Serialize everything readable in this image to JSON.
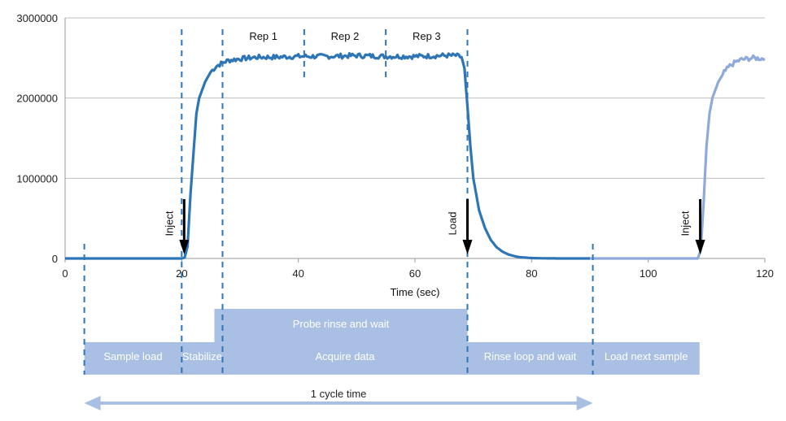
{
  "chart_data": {
    "type": "line",
    "xlabel": "Time (sec)",
    "ylabel": "",
    "xlim": [
      0,
      120
    ],
    "ylim": [
      0,
      3000000
    ],
    "x_ticks": [
      0,
      20,
      40,
      60,
      80,
      100,
      120
    ],
    "y_ticks": [
      0,
      1000000,
      2000000,
      3000000
    ],
    "grid": "horizontal",
    "series": [
      {
        "color": "#2e75b6",
        "x": [
          0,
          3,
          10,
          20,
          20.5,
          21,
          21.5,
          22,
          22.5,
          23,
          24,
          25,
          26,
          27,
          28,
          30,
          33,
          36,
          40,
          45,
          50,
          55,
          60,
          65,
          67,
          68,
          68.5,
          69,
          69.5,
          70,
          71,
          72,
          73,
          74,
          75,
          76,
          77,
          78,
          80,
          82,
          85,
          90
        ],
        "y": [
          0,
          0,
          0,
          0,
          10000,
          150000,
          800000,
          1300000,
          1800000,
          2000000,
          2200000,
          2330000,
          2400000,
          2440000,
          2470000,
          2490000,
          2510000,
          2510000,
          2520000,
          2520000,
          2530000,
          2520000,
          2520000,
          2530000,
          2530000,
          2510000,
          2350000,
          1900000,
          1400000,
          1000000,
          600000,
          380000,
          230000,
          140000,
          85000,
          50000,
          30000,
          15000,
          5000,
          2000,
          0,
          0
        ]
      },
      {
        "color": "#8eaadb",
        "x": [
          90,
          100,
          105,
          108.5,
          109,
          109.5,
          110,
          110.5,
          111,
          112,
          113,
          114,
          115,
          116,
          118,
          120
        ],
        "y": [
          0,
          0,
          0,
          0,
          100000,
          700000,
          1400000,
          1800000,
          2000000,
          2200000,
          2320000,
          2400000,
          2450000,
          2480000,
          2500000,
          2490000
        ]
      }
    ],
    "reps": [
      {
        "label": "Rep 1",
        "start": 27,
        "end": 41
      },
      {
        "label": "Rep 2",
        "start": 41,
        "end": 55
      },
      {
        "label": "Rep 3",
        "start": 55,
        "end": 69
      }
    ],
    "dashed_markers_x": [
      3.3,
      20,
      27,
      69,
      90.5
    ],
    "arrows": [
      {
        "label": "Inject",
        "x": 20
      },
      {
        "label": "Load",
        "x": 69
      },
      {
        "label": "Inject",
        "x": 108.5
      }
    ]
  },
  "phases": {
    "probe_rinse": {
      "label": "Probe rinse and wait",
      "start": 25.6,
      "end": 69
    },
    "bottom": [
      {
        "label": "Sample load",
        "start": 3.3,
        "end": 20
      },
      {
        "label": "Stabilize",
        "start": 20,
        "end": 27
      },
      {
        "label": "Acquire data",
        "start": 27,
        "end": 69
      },
      {
        "label": "Rinse loop and wait",
        "start": 69,
        "end": 90.5
      },
      {
        "label": "Load next sample",
        "start": 90.5,
        "end": 108.8
      }
    ]
  },
  "cycle": {
    "label": "1 cycle time",
    "start": 3.3,
    "end": 90.5
  },
  "colors": {
    "line": "#2e75b6",
    "line_next": "#8eaadb",
    "phase_fill": "#a9bfe3",
    "dash": "#2e75b6",
    "arrow": "#000000",
    "grid": "#bfbfbf"
  }
}
